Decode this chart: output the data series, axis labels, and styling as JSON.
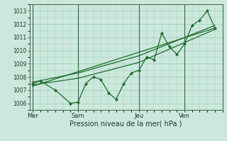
{
  "bg_color": "#cce8dd",
  "grid_color": "#99ccbb",
  "line_color": "#1a6b2a",
  "marker_color": "#1a6b2a",
  "xlabel": "Pression niveau de la mer( hPa )",
  "ylim": [
    1005.5,
    1013.5
  ],
  "yticks": [
    1006,
    1007,
    1008,
    1009,
    1010,
    1011,
    1012,
    1013
  ],
  "day_labels": [
    "Mer",
    "Sam",
    "Jeu",
    "Ven"
  ],
  "day_positions": [
    0,
    3,
    7,
    10
  ],
  "vline_positions": [
    0,
    3,
    7,
    10
  ],
  "series1": {
    "x": [
      0,
      0.5,
      1.5,
      2.5,
      3.0,
      3.5,
      4.0,
      4.5,
      5.0,
      5.5,
      6.0,
      6.5,
      7.0,
      7.5,
      8.0,
      8.5,
      9.0,
      9.5,
      10.0,
      10.5,
      11.0,
      11.5,
      12.0
    ],
    "y": [
      1007.5,
      1007.7,
      1007.0,
      1006.0,
      1006.1,
      1007.5,
      1008.0,
      1007.8,
      1006.8,
      1006.3,
      1007.5,
      1008.3,
      1008.5,
      1009.5,
      1009.3,
      1011.3,
      1010.3,
      1009.7,
      1010.5,
      1011.9,
      1012.3,
      1013.0,
      1011.7
    ]
  },
  "series2_trend": {
    "x": [
      0,
      12.0
    ],
    "y": [
      1007.3,
      1011.7
    ]
  },
  "series3_upper": {
    "x": [
      0,
      3.0,
      7.0,
      12.0
    ],
    "y": [
      1007.6,
      1008.3,
      1009.6,
      1011.9
    ]
  },
  "series4_lower": {
    "x": [
      0,
      3.0,
      7.0,
      12.0
    ],
    "y": [
      1007.4,
      1007.9,
      1009.1,
      1011.6
    ]
  },
  "xlim": [
    -0.2,
    12.5
  ],
  "ylabel_fontsize": 5.5,
  "xlabel_fontsize": 7,
  "xtick_fontsize": 6,
  "title_fontsize": 7
}
